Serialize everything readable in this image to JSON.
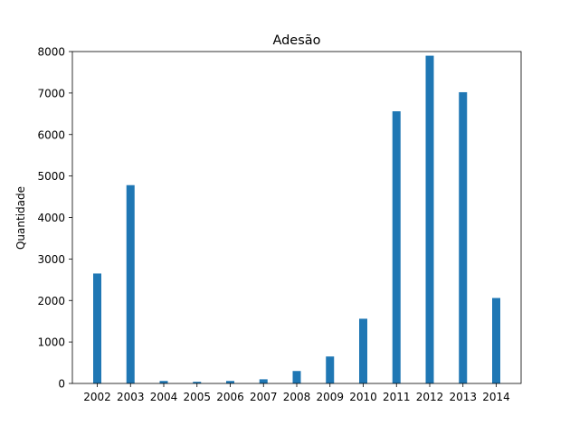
{
  "chart_data": {
    "type": "bar",
    "title": "Adesão",
    "xlabel": "",
    "ylabel": "Quantidade",
    "categories": [
      "2002",
      "2003",
      "2004",
      "2005",
      "2006",
      "2007",
      "2008",
      "2009",
      "2010",
      "2011",
      "2012",
      "2013",
      "2014"
    ],
    "values": [
      2650,
      4780,
      60,
      40,
      60,
      100,
      300,
      650,
      1560,
      6560,
      7900,
      7020,
      2060
    ],
    "ylim": [
      0,
      8000
    ],
    "yticks": [
      0,
      1000,
      2000,
      3000,
      4000,
      5000,
      6000,
      7000,
      8000
    ],
    "grid": false,
    "legend": "none",
    "bar_color": "#1f77b4"
  }
}
